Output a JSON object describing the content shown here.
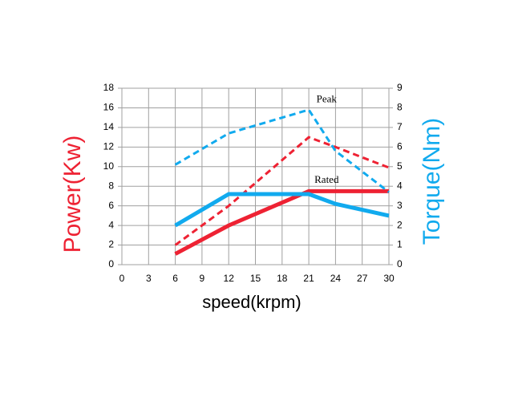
{
  "chart_data": {
    "type": "line",
    "x": [
      6,
      12,
      21,
      24,
      30
    ],
    "series": [
      {
        "name": "Rated power",
        "color": "#ee2233",
        "dash": false,
        "values": [
          1.1,
          4.0,
          7.5,
          7.5,
          7.5
        ]
      },
      {
        "name": "Peak power",
        "color": "#ee2233",
        "dash": true,
        "values": [
          2.0,
          6.0,
          13.0,
          12.0,
          9.9
        ]
      },
      {
        "name": "Rated torque",
        "color": "#11aaee",
        "dash": false,
        "axis": "y2",
        "values": [
          2.0,
          3.6,
          3.6,
          3.1,
          2.5
        ]
      },
      {
        "name": "Peak torque",
        "color": "#11aaee",
        "dash": true,
        "axis": "y2",
        "values": [
          5.1,
          6.7,
          7.9,
          5.8,
          3.7
        ]
      }
    ],
    "xlabel": "speed(krpm)",
    "ylabel": "Power(Kw)",
    "y2label": "Torque(Nm)",
    "ylabel_color": "#ee2233",
    "y2label_color": "#11aaee",
    "xlim": [
      0,
      30
    ],
    "xticks": [
      0,
      3,
      6,
      9,
      12,
      15,
      18,
      21,
      24,
      27,
      30
    ],
    "ylim": [
      0,
      18
    ],
    "yticks": [
      0,
      2,
      4,
      6,
      8,
      10,
      12,
      14,
      16,
      18
    ],
    "y2lim": [
      0,
      9
    ],
    "y2ticks": [
      0,
      1,
      2,
      3,
      4,
      5,
      6,
      7,
      8,
      9
    ],
    "grid": true,
    "annotations": [
      {
        "text": "Peak",
        "x": 23,
        "y": 16.8
      },
      {
        "text": "Rated",
        "x": 23,
        "y": 8.6
      }
    ]
  }
}
